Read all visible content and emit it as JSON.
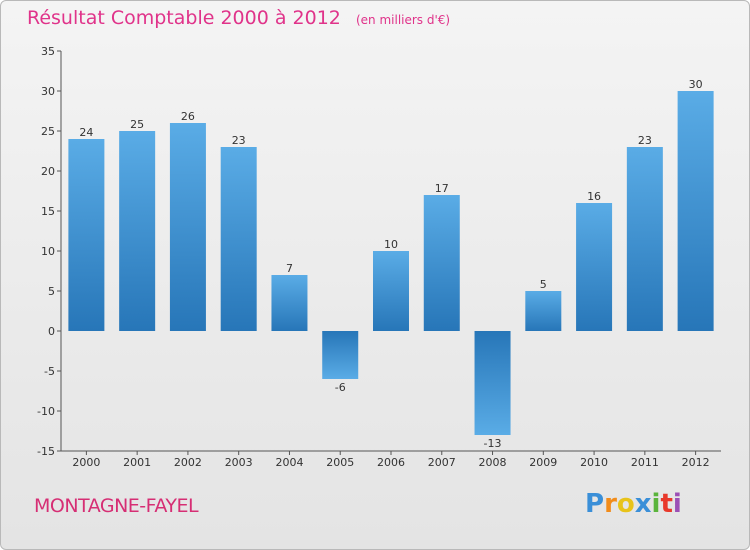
{
  "chart_data": {
    "type": "bar",
    "title": "Résultat Comptable 2000 à 2012",
    "unit_note": "(en milliers d'€)",
    "categories": [
      "2000",
      "2001",
      "2002",
      "2003",
      "2004",
      "2005",
      "2006",
      "2007",
      "2008",
      "2009",
      "2010",
      "2011",
      "2012"
    ],
    "values": [
      24,
      25,
      26,
      23,
      7,
      -6,
      10,
      17,
      -13,
      5,
      16,
      23,
      30
    ],
    "ylim": [
      -15,
      35
    ],
    "yticks": [
      -15,
      -10,
      -5,
      0,
      5,
      10,
      15,
      20,
      25,
      30,
      35
    ],
    "grid": false,
    "xlabel": "",
    "ylabel": "",
    "colors": {
      "bar_light": "#5aace6",
      "bar_dark": "#2776b8",
      "axis": "#555555"
    }
  },
  "footer": {
    "town": "MONTAGNE-FAYEL",
    "logo_letters": [
      "P",
      "r",
      "o",
      "x",
      "i",
      "t",
      "i"
    ],
    "logo_colors": [
      "#3a8fd8",
      "#f28c1a",
      "#e8c31a",
      "#3a8fd8",
      "#5ab43c",
      "#e8392b",
      "#9c4fb5"
    ]
  }
}
